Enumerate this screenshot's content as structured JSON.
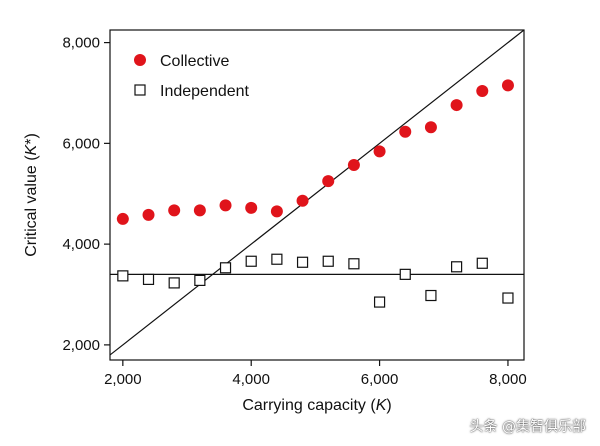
{
  "chart_data": {
    "type": "scatter",
    "xlabel": "Carrying capacity (K)",
    "xlabel_parts": [
      "Carrying capacity (",
      "K",
      ")"
    ],
    "ylabel": "Critical value (K*)",
    "ylabel_parts": [
      "Critical value (",
      "K",
      "*)"
    ],
    "xlim": [
      1800,
      8250
    ],
    "ylim": [
      1700,
      8250
    ],
    "x_ticks": [
      2000,
      4000,
      6000,
      8000
    ],
    "x_tick_labels": [
      "2,000",
      "4,000",
      "6,000",
      "8,000"
    ],
    "y_ticks": [
      2000,
      4000,
      6000,
      8000
    ],
    "y_tick_labels": [
      "2,000",
      "4,000",
      "6,000",
      "8,000"
    ],
    "legend_position": "top-left",
    "series": [
      {
        "name": "Collective",
        "marker": "filled-circle",
        "color": "#e0141b",
        "x": [
          2000,
          2400,
          2800,
          3200,
          3600,
          4000,
          4400,
          4800,
          5200,
          5600,
          6000,
          6400,
          6800,
          7200,
          7600,
          8000
        ],
        "y": [
          4500,
          4580,
          4670,
          4670,
          4770,
          4720,
          4650,
          4860,
          5250,
          5570,
          5840,
          6230,
          6320,
          6760,
          7040,
          7150
        ]
      },
      {
        "name": "Independent",
        "marker": "open-square",
        "color": "#111111",
        "x": [
          2000,
          2400,
          2800,
          3200,
          3600,
          4000,
          4400,
          4800,
          5200,
          5600,
          6000,
          6400,
          6800,
          7200,
          7600,
          8000
        ],
        "y": [
          3370,
          3300,
          3230,
          3280,
          3530,
          3660,
          3700,
          3640,
          3660,
          3610,
          2850,
          3400,
          2980,
          3550,
          3620,
          2930
        ]
      }
    ],
    "reference_lines": [
      {
        "name": "identity-line",
        "kind": "diagonal",
        "points": [
          [
            1800,
            1800
          ],
          [
            8250,
            8250
          ]
        ]
      },
      {
        "name": "horizontal-line",
        "kind": "horizontal",
        "y": 3400
      }
    ]
  },
  "watermark": "头条 @集智俱乐部"
}
